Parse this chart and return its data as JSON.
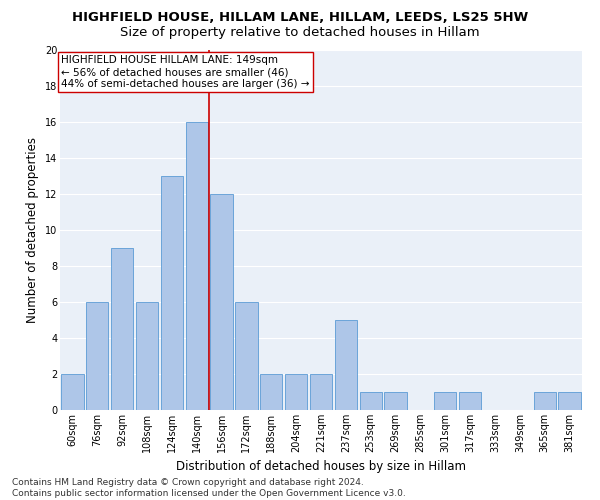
{
  "title": "HIGHFIELD HOUSE, HILLAM LANE, HILLAM, LEEDS, LS25 5HW",
  "subtitle": "Size of property relative to detached houses in Hillam",
  "xlabel": "Distribution of detached houses by size in Hillam",
  "ylabel": "Number of detached properties",
  "categories": [
    "60sqm",
    "76sqm",
    "92sqm",
    "108sqm",
    "124sqm",
    "140sqm",
    "156sqm",
    "172sqm",
    "188sqm",
    "204sqm",
    "221sqm",
    "237sqm",
    "253sqm",
    "269sqm",
    "285sqm",
    "301sqm",
    "317sqm",
    "333sqm",
    "349sqm",
    "365sqm",
    "381sqm"
  ],
  "values": [
    2,
    6,
    9,
    6,
    13,
    16,
    12,
    6,
    2,
    2,
    2,
    5,
    1,
    1,
    0,
    1,
    1,
    0,
    0,
    1,
    1
  ],
  "bar_color": "#aec6e8",
  "bar_edge_color": "#5b9bd5",
  "vline_x": 5.5,
  "vline_color": "#cc0000",
  "annotation_text": "HIGHFIELD HOUSE HILLAM LANE: 149sqm\n← 56% of detached houses are smaller (46)\n44% of semi-detached houses are larger (36) →",
  "annotation_box_color": "#ffffff",
  "annotation_box_edge": "#cc0000",
  "ylim": [
    0,
    20
  ],
  "yticks": [
    0,
    2,
    4,
    6,
    8,
    10,
    12,
    14,
    16,
    18,
    20
  ],
  "footer": "Contains HM Land Registry data © Crown copyright and database right 2024.\nContains public sector information licensed under the Open Government Licence v3.0.",
  "bg_color": "#eaf0f8",
  "grid_color": "#ffffff",
  "title_fontsize": 9.5,
  "subtitle_fontsize": 9.5,
  "axis_label_fontsize": 8.5,
  "tick_fontsize": 7,
  "footer_fontsize": 6.5,
  "annotation_fontsize": 7.5
}
